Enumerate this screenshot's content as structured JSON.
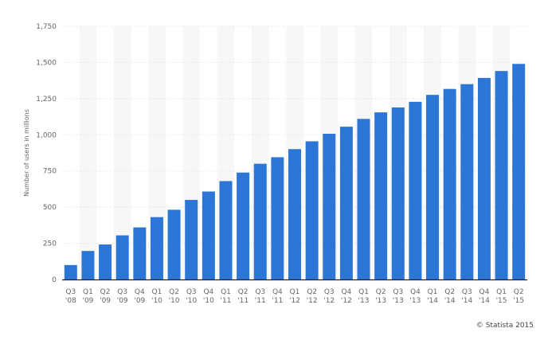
{
  "chart_data": {
    "type": "bar",
    "ylabel": "Number of users in millions",
    "ylim": [
      0,
      1750
    ],
    "yticks": [
      "0",
      "250",
      "500",
      "750",
      "1,000",
      "1,250",
      "1,500",
      "1,750"
    ],
    "grid": true,
    "categories": [
      [
        "Q3",
        "'08"
      ],
      [
        "Q1",
        "'09"
      ],
      [
        "Q2",
        "'09"
      ],
      [
        "Q3",
        "'09"
      ],
      [
        "Q4",
        "'09"
      ],
      [
        "Q1",
        "'10"
      ],
      [
        "Q2",
        "'10"
      ],
      [
        "Q3",
        "'10"
      ],
      [
        "Q4",
        "'10"
      ],
      [
        "Q1",
        "'11"
      ],
      [
        "Q2",
        "'11"
      ],
      [
        "Q3",
        "'11"
      ],
      [
        "Q4",
        "'11"
      ],
      [
        "Q1",
        "'12"
      ],
      [
        "Q2",
        "'12"
      ],
      [
        "Q3",
        "'12"
      ],
      [
        "Q4",
        "'12"
      ],
      [
        "Q1",
        "'13"
      ],
      [
        "Q2",
        "'13"
      ],
      [
        "Q3",
        "'13"
      ],
      [
        "Q4",
        "'13"
      ],
      [
        "Q1",
        "'14"
      ],
      [
        "Q2",
        "'14"
      ],
      [
        "Q3",
        "'14"
      ],
      [
        "Q4",
        "'14"
      ],
      [
        "Q1",
        "'15"
      ],
      [
        "Q2",
        "'15"
      ]
    ],
    "values": [
      100,
      197,
      242,
      305,
      360,
      431,
      482,
      550,
      608,
      680,
      739,
      800,
      845,
      901,
      955,
      1007,
      1056,
      1110,
      1155,
      1189,
      1228,
      1276,
      1317,
      1350,
      1393,
      1441,
      1490
    ],
    "bar_color": "#2b76d6"
  },
  "credit": "© Statista 2015"
}
